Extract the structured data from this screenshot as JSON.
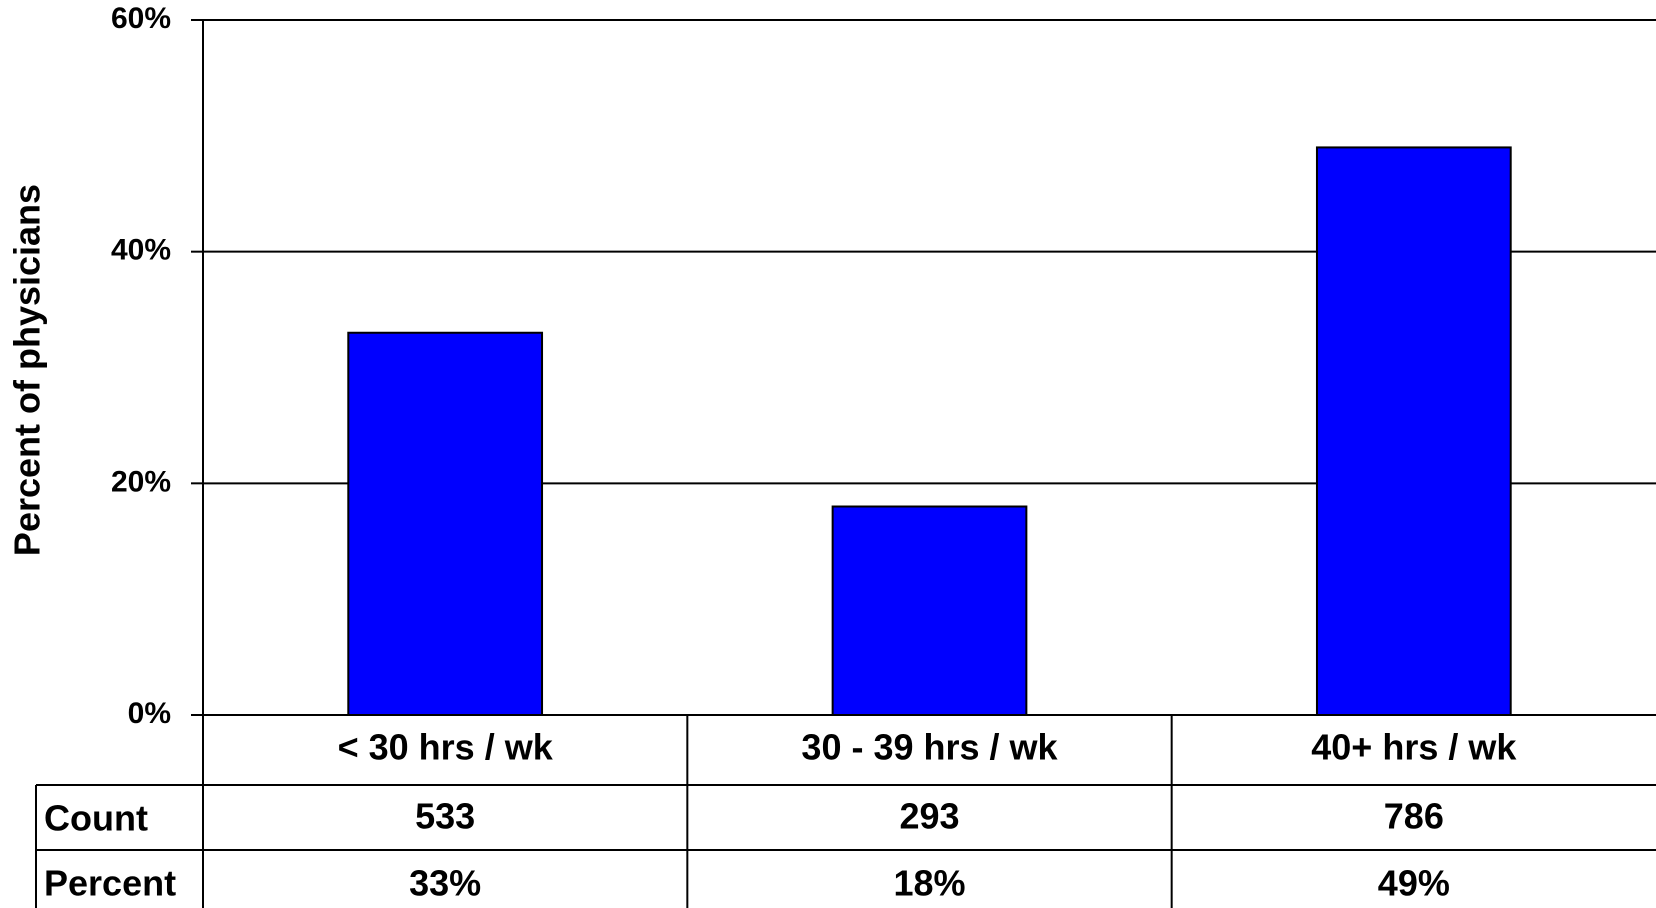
{
  "chart_data": {
    "type": "bar",
    "ylabel": "Percent of physicians",
    "categories": [
      "< 30 hrs / wk",
      "30 - 39 hrs / wk",
      "40+ hrs / wk"
    ],
    "values": [
      33,
      18,
      49
    ],
    "value_labels": [
      "33%",
      "18%",
      "49%"
    ],
    "color": "#0000ff",
    "ylim": [
      0,
      60
    ],
    "yticks": [
      {
        "value": 0,
        "label": "0%"
      },
      {
        "value": 20,
        "label": "20%"
      },
      {
        "value": 40,
        "label": "40%"
      },
      {
        "value": 60,
        "label": "60%"
      }
    ],
    "grid": true,
    "table": {
      "row_labels": [
        "Count",
        "Percent"
      ],
      "counts": [
        533,
        293,
        786
      ]
    }
  }
}
